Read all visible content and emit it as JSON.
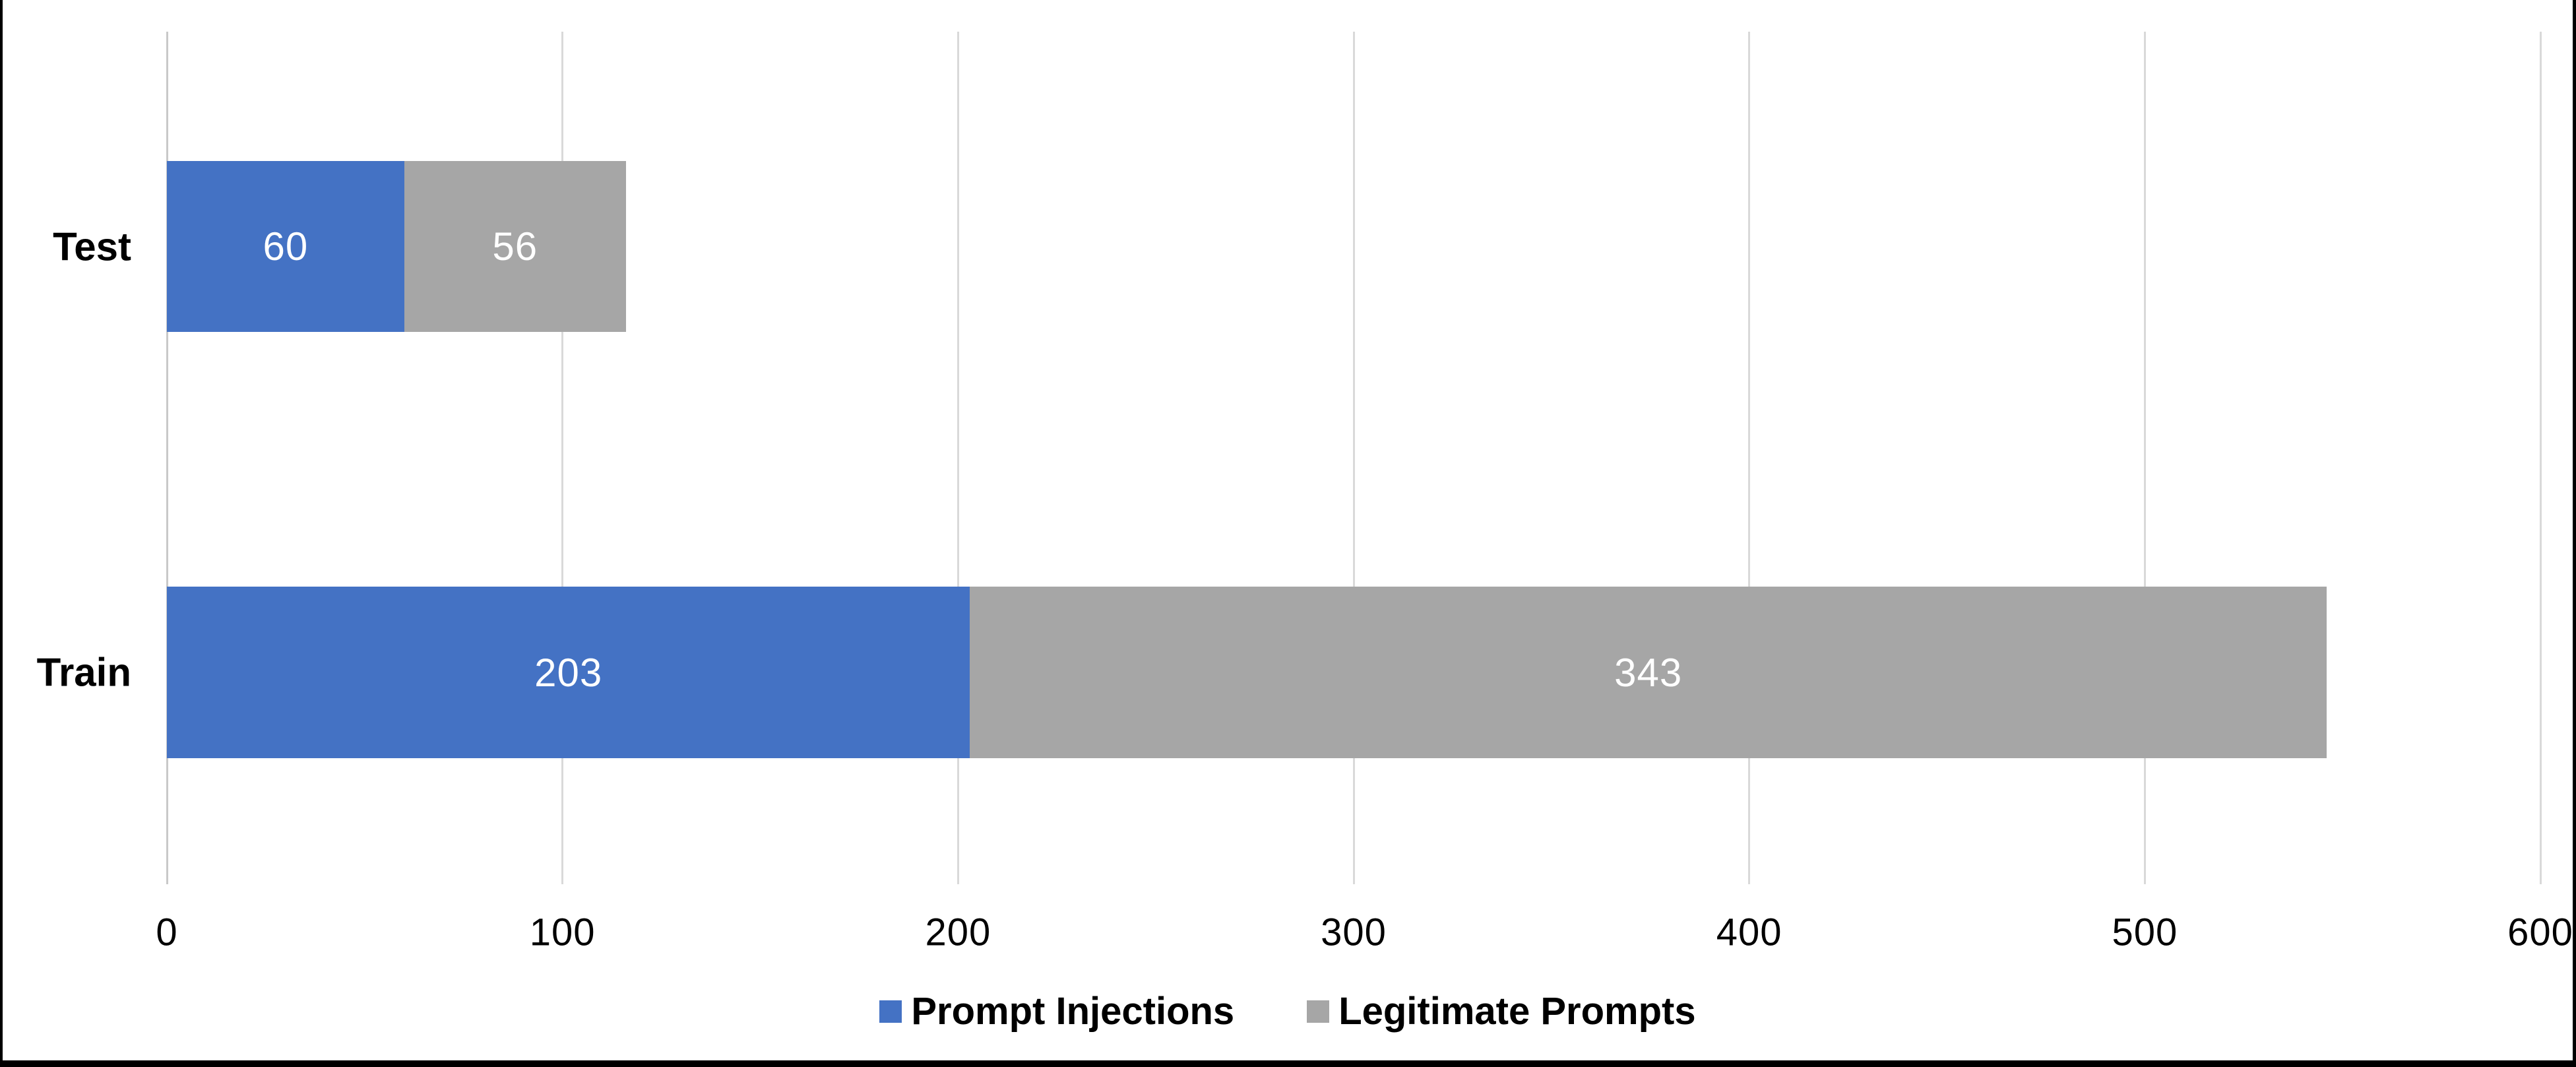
{
  "chart_data": {
    "type": "bar",
    "orientation": "horizontal",
    "stacked": true,
    "title": "",
    "categories": [
      "Test",
      "Train"
    ],
    "series": [
      {
        "name": "Prompt Injections",
        "color": "#4472C4",
        "values": [
          60,
          203
        ],
        "value_label_color": "#FFFFFF"
      },
      {
        "name": "Legitimate Prompts",
        "color": "#A6A6A6",
        "values": [
          56,
          343
        ],
        "value_label_color": "#FFFFFF"
      }
    ],
    "totals": [
      116,
      546
    ],
    "x_ticks": [
      "0",
      "100",
      "200",
      "300",
      "400",
      "500",
      "600"
    ],
    "x_tick_values": [
      0,
      100,
      200,
      300,
      400,
      500,
      600
    ],
    "xlim": [
      0,
      600
    ],
    "grid": true,
    "legend_position": "bottom"
  },
  "colors": {
    "gridline": "#D9D9D9",
    "zero_axis": "#C9C9C9",
    "frame_border": "#000000",
    "background": "#FFFFFF",
    "text": "#000000"
  }
}
